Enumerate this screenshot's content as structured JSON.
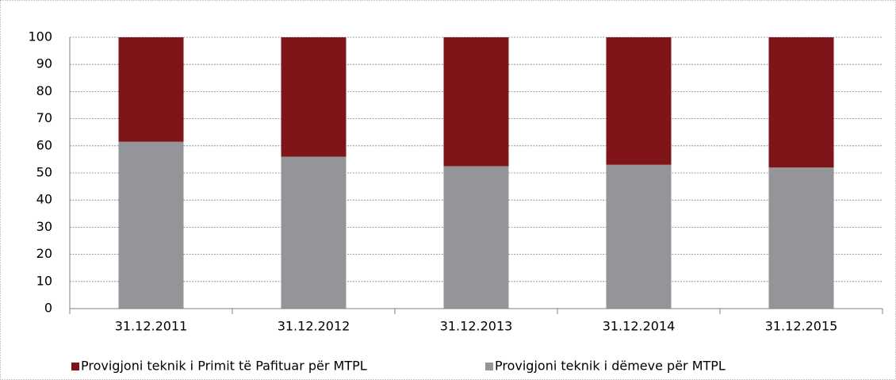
{
  "chart_data": {
    "type": "stacked_bar",
    "categories": [
      "31.12.2011",
      "31.12.2012",
      "31.12.2013",
      "31.12.2014",
      "31.12.2015"
    ],
    "series": [
      {
        "name": "Provigjoni teknik i Primit të Pafituar për MTPL",
        "color": "#7f1518",
        "values": [
          38.5,
          44,
          47.5,
          47,
          48
        ]
      },
      {
        "name": "Provigjoni teknik i dëmeve për MTPL",
        "color": "#939598",
        "values": [
          61.5,
          56,
          52.5,
          53,
          52
        ]
      }
    ],
    "ylim": [
      0,
      100
    ],
    "yticks": [
      0,
      10,
      20,
      30,
      40,
      50,
      60,
      70,
      80,
      90,
      100
    ],
    "grid": true,
    "legend": "bottom"
  }
}
